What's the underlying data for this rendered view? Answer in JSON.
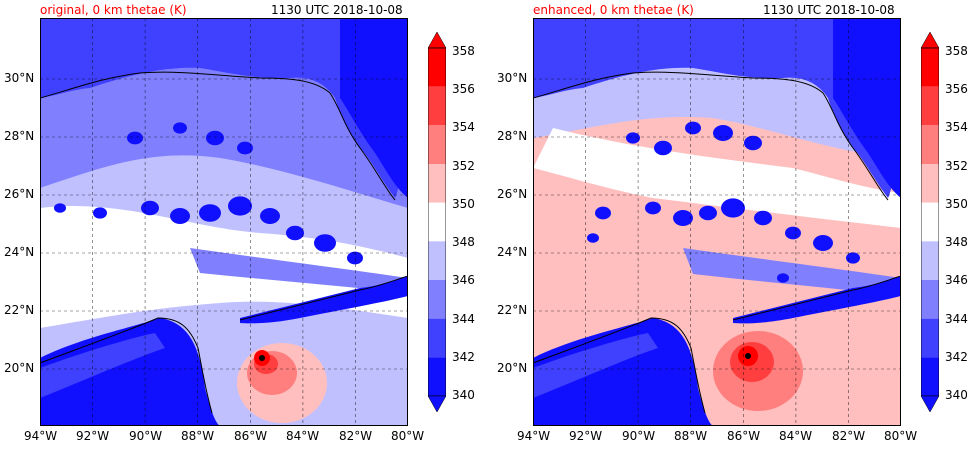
{
  "panels": [
    {
      "id": "original",
      "title_left": "original, 0 km thetae (K)",
      "title_right": "1130 UTC 2018-10-08"
    },
    {
      "id": "enhanced",
      "title_left": "enhanced, 0 km thetae (K)",
      "title_right": "1130 UTC 2018-10-08"
    }
  ],
  "lat_labels": [
    "30°N",
    "28°N",
    "26°N",
    "24°N",
    "22°N",
    "20°N"
  ],
  "lon_labels": [
    "94°W",
    "92°W",
    "90°W",
    "88°W",
    "86°W",
    "84°W",
    "82°W",
    "80°W"
  ],
  "colorbar": {
    "ticks": [
      "358",
      "356",
      "354",
      "352",
      "350",
      "348",
      "346",
      "344",
      "342",
      "340"
    ],
    "colors": [
      "#ff0000",
      "#ff3f3f",
      "#ff7f7f",
      "#ffbfbf",
      "#ffffff",
      "#c0c0ff",
      "#8080ff",
      "#4040ff",
      "#1010ff"
    ]
  },
  "colors": {
    "deep_blue": "#1010ff",
    "blue": "#4040ff",
    "mid_blue": "#8080ff",
    "light_blue": "#c0c0ff",
    "white": "#ffffff",
    "light_red": "#ffbfbf",
    "mid_red": "#ff7f7f",
    "red": "#ff3f3f",
    "deep_red": "#ff0000",
    "title_red": "#ff0000"
  }
}
